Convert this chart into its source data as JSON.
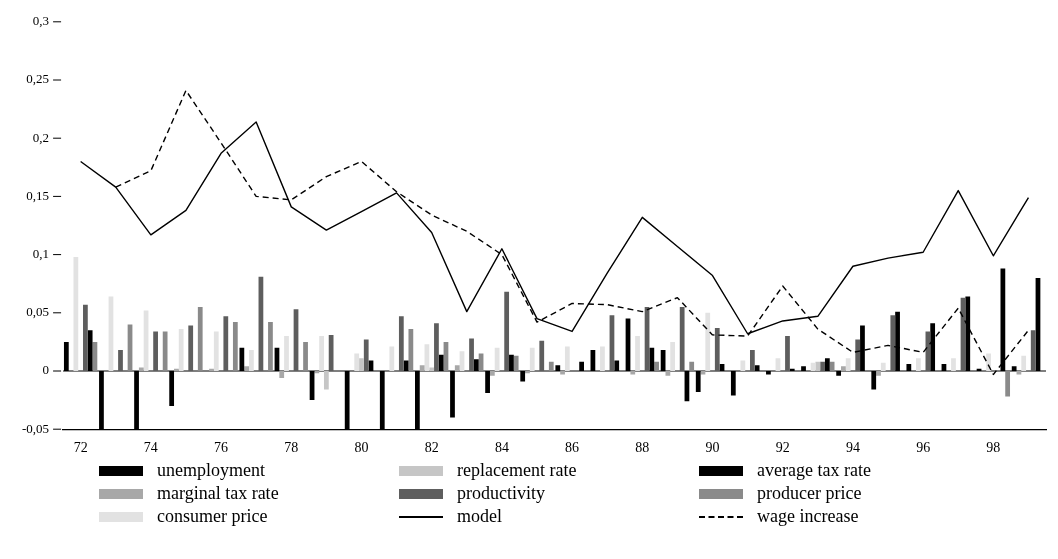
{
  "chart_data": {
    "type": "bar",
    "categories": [
      "72",
      null,
      "74",
      null,
      "76",
      null,
      "78",
      null,
      "80",
      null,
      "82",
      null,
      "84",
      null,
      "86",
      null,
      "88",
      null,
      "90",
      null,
      "92",
      null,
      "94",
      null,
      "96",
      null,
      "98",
      null
    ],
    "ylim": [
      -0.05,
      0.3
    ],
    "yticks": [
      {
        "value": -0.05,
        "label": "-0,05"
      },
      {
        "value": 0,
        "label": "0"
      },
      {
        "value": 0.05,
        "label": "0,05"
      },
      {
        "value": 0.1,
        "label": "0,1"
      },
      {
        "value": 0.15,
        "label": "0,15"
      },
      {
        "value": 0.2,
        "label": "0,2"
      },
      {
        "value": 0.25,
        "label": "0,25"
      },
      {
        "value": 0.3,
        "label": "0,3"
      }
    ],
    "ref_lines": [
      {
        "axis": "y",
        "value": 0
      }
    ],
    "legend": "bottom",
    "series": [
      {
        "name": "unemployment",
        "color": "#000000",
        "values": [
          0.025,
          -0.05,
          -0.05,
          -0.03,
          0,
          0.02,
          0.02,
          -0.025,
          -0.05,
          -0.05,
          -0.05,
          -0.04,
          -0.019,
          -0.009,
          0.005,
          0.018,
          0.045,
          0.018,
          -0.018,
          -0.021,
          -0.003,
          0.004,
          -0.004,
          -0.016,
          0.006,
          0.006,
          0.002,
          0.004
        ]
      },
      {
        "name": "marginal tax rate",
        "color": "#a8a8a8",
        "values": [
          0,
          0,
          0.003,
          0.002,
          0.002,
          0.004,
          -0.006,
          -0.002,
          0,
          0,
          0.005,
          0.005,
          -0.004,
          -0.002,
          -0.003,
          0,
          -0.003,
          -0.004,
          -0.003,
          0,
          0,
          0,
          0.004,
          -0.004,
          0,
          0,
          0,
          -0.003
        ]
      },
      {
        "name": "consumer price",
        "color": "#e2e2e2",
        "values": [
          0.098,
          0.064,
          0.052,
          0.036,
          0.034,
          0.018,
          0.03,
          0.03,
          0.015,
          0.021,
          0.023,
          0.017,
          0.02,
          0.02,
          0.021,
          0.021,
          0.03,
          0.025,
          0.05,
          0.009,
          0.011,
          0.007,
          0.011,
          0.007,
          0.011,
          0.011,
          0.015,
          0.013
        ]
      },
      {
        "name": "replacement rate",
        "color": "#c6c6c6",
        "values": [
          0,
          0,
          0,
          0,
          0,
          0,
          0,
          -0.016,
          0.011,
          0,
          0.003,
          0,
          0,
          0,
          0,
          0,
          0,
          0,
          0,
          0,
          0,
          0.008,
          0,
          0,
          0,
          0,
          0,
          0
        ]
      },
      {
        "name": "productivity",
        "color": "#5e5e5e",
        "values": [
          0.057,
          0.018,
          0.034,
          0.039,
          0.047,
          0.081,
          0.053,
          0.031,
          0.027,
          0.047,
          0.041,
          0.028,
          0.068,
          0.026,
          0,
          0.048,
          0.055,
          0.055,
          0.037,
          0.018,
          0.03,
          0.008,
          0.027,
          0.048,
          0.034,
          0.063,
          0,
          0.035
        ]
      },
      {
        "name": "model",
        "type": "line",
        "color": "#000000",
        "values": [
          0.18,
          0.158,
          0.117,
          0.138,
          0.187,
          0.214,
          0.141,
          0.121,
          0.137,
          0.153,
          0.119,
          0.051,
          0.105,
          0.045,
          0.034,
          0.084,
          0.132,
          0.107,
          0.082,
          0.032,
          0.043,
          0.047,
          0.09,
          0.097,
          0.102,
          0.155,
          0.099,
          0.149
        ]
      },
      {
        "name": "average tax rate",
        "color": "#000000",
        "values": [
          0.035,
          0,
          0,
          0,
          0,
          0,
          0,
          0,
          0.009,
          0.009,
          0.014,
          0.01,
          0.014,
          0,
          0.008,
          0.009,
          0.02,
          -0.026,
          0.006,
          0.005,
          0.002,
          0.011,
          0.039,
          0.051,
          0.041,
          0.064,
          0.088,
          0.08
        ]
      },
      {
        "name": "producer price",
        "color": "#8a8a8a",
        "values": [
          0.025,
          0.04,
          0.034,
          0.055,
          0.042,
          0.042,
          0.025,
          0,
          0,
          0.036,
          0.025,
          0.015,
          0.013,
          0.008,
          0,
          0,
          0.008,
          0.008,
          0,
          0,
          0,
          0.008,
          0,
          0,
          0,
          0,
          -0.022,
          0
        ]
      },
      {
        "name": "wage increase",
        "type": "line",
        "line_style": "dashed",
        "color": "#000000",
        "values": [
          null,
          0.158,
          0.172,
          0.241,
          0.196,
          0.15,
          0.147,
          0.167,
          0.18,
          0.154,
          0.134,
          0.12,
          0.1,
          0.042,
          0.058,
          0.057,
          0.051,
          0.063,
          0.031,
          0.03,
          0.073,
          0.036,
          0.016,
          0.022,
          0.016,
          0.054,
          -0.003,
          0.035
        ]
      }
    ]
  }
}
